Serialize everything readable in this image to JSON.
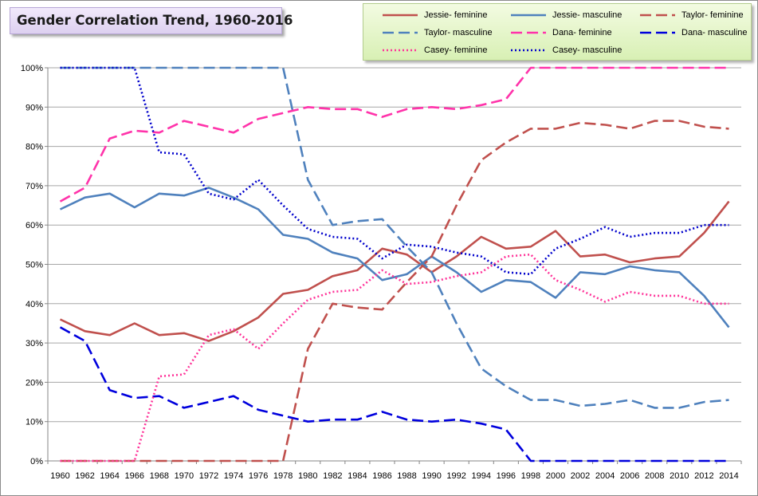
{
  "chart_data": {
    "type": "line",
    "title": "Gender Correlation Trend, 1960-2016",
    "xlabel": "",
    "ylabel": "",
    "x": [
      1960,
      1962,
      1964,
      1966,
      1968,
      1970,
      1972,
      1974,
      1976,
      1978,
      1980,
      1982,
      1984,
      1986,
      1988,
      1990,
      1992,
      1994,
      1996,
      1998,
      2000,
      2002,
      2004,
      2006,
      2008,
      2010,
      2012,
      2014
    ],
    "ylim": [
      0,
      100
    ],
    "yticks": [
      "0%",
      "10%",
      "20%",
      "30%",
      "40%",
      "50%",
      "60%",
      "70%",
      "80%",
      "90%",
      "100%"
    ],
    "grid": true,
    "legend_position": "top-right",
    "series": [
      {
        "name": "Jessie- feminine",
        "color": "#c0504d",
        "style": "solid",
        "values": [
          36,
          33,
          32,
          35,
          32,
          32.5,
          30.5,
          33,
          36.5,
          42.5,
          43.5,
          47,
          48.5,
          54,
          52.5,
          48,
          52,
          57,
          54,
          54.5,
          58.5,
          52,
          52.5,
          50.5,
          51.5,
          52,
          58,
          66
        ]
      },
      {
        "name": "Jessie- masculine",
        "color": "#4f81bd",
        "style": "solid",
        "values": [
          64,
          67,
          68,
          64.5,
          68,
          67.5,
          69.5,
          67,
          64,
          57.5,
          56.5,
          53,
          51.5,
          46,
          47.5,
          52,
          48,
          43,
          46,
          45.5,
          41.5,
          48,
          47.5,
          49.5,
          48.5,
          48,
          42,
          34
        ]
      },
      {
        "name": "Taylor- feminine",
        "color": "#c0504d",
        "style": "dash",
        "values": [
          0,
          0,
          0,
          0,
          0,
          0,
          0,
          0,
          0,
          0,
          28.5,
          40,
          39,
          38.5,
          45.5,
          52,
          65,
          76.5,
          81,
          84.5,
          84.5,
          86,
          85.5,
          84.5,
          86.5,
          86.5,
          85,
          84.5
        ]
      },
      {
        "name": "Taylor- masculine",
        "color": "#4f81bd",
        "style": "dash",
        "values": [
          100,
          100,
          100,
          100,
          100,
          100,
          100,
          100,
          100,
          100,
          71.5,
          60,
          61,
          61.5,
          54.5,
          48,
          35,
          23.5,
          19,
          15.5,
          15.5,
          14,
          14.5,
          15.5,
          13.5,
          13.5,
          15,
          15.5
        ]
      },
      {
        "name": "Dana- feminine",
        "color": "#ff33aa",
        "style": "dash",
        "values": [
          66,
          69.5,
          82,
          84,
          83.5,
          86.5,
          85,
          83.5,
          87,
          88.5,
          90,
          89.5,
          89.5,
          87.5,
          89.5,
          90,
          89.5,
          90.5,
          92,
          100,
          100,
          100,
          100,
          100,
          100,
          100,
          100,
          100
        ]
      },
      {
        "name": "Dana- masculine",
        "color": "#0000dd",
        "style": "dash",
        "values": [
          34,
          30.5,
          18,
          16,
          16.5,
          13.5,
          15,
          16.5,
          13,
          11.5,
          10,
          10.5,
          10.5,
          12.5,
          10.5,
          10,
          10.5,
          9.5,
          8,
          0,
          0,
          0,
          0,
          0,
          0,
          0,
          0,
          0
        ]
      },
      {
        "name": "Casey- feminine",
        "color": "#ff3399",
        "style": "dot",
        "values": [
          0,
          0,
          0,
          0,
          21.5,
          22,
          32,
          33.5,
          28.5,
          35,
          41,
          43,
          43.5,
          48.5,
          45,
          45.5,
          47,
          48,
          52,
          52.5,
          46,
          43.5,
          40.5,
          43,
          42,
          42,
          40,
          40
        ]
      },
      {
        "name": "Casey- masculine",
        "color": "#0000cc",
        "style": "dot",
        "values": [
          100,
          100,
          100,
          100,
          78.5,
          78,
          68,
          66.5,
          71.5,
          65,
          59,
          57,
          56.5,
          51.5,
          55,
          54.5,
          53,
          52,
          48,
          47.5,
          54,
          56.5,
          59.5,
          57,
          58,
          58,
          60,
          60
        ]
      }
    ]
  }
}
